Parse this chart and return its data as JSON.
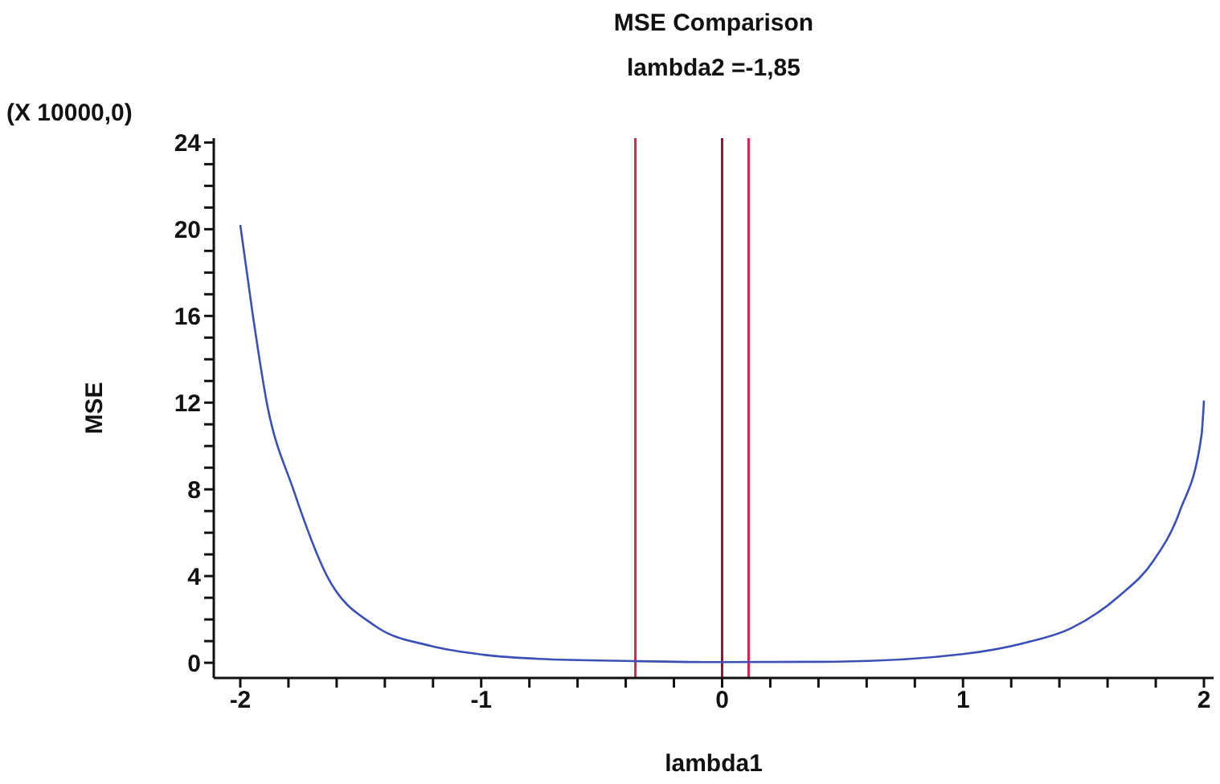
{
  "chart_data": {
    "type": "line",
    "title": "MSE Comparison",
    "subtitle": "lambda2 =-1,85",
    "xlabel": "lambda1",
    "ylabel": "MSE",
    "annotations": [
      "(X 10000,0)"
    ],
    "x": [
      -2,
      -1.95,
      -1.89,
      -1.78,
      -1.64,
      -1.44,
      -1.21,
      -0.99,
      -0.76,
      -0.37,
      0,
      0.47,
      1,
      1.25,
      1.45,
      1.65,
      1.79,
      1.9,
      1.99,
      2
    ],
    "series": [
      {
        "color": "#3b4fb8",
        "values": [
          20.2,
          16.2,
          12.0,
          8.0,
          4.0,
          1.7,
          0.78,
          0.37,
          0.18,
          0.08,
          0.03,
          0.05,
          0.4,
          0.9,
          1.6,
          3.1,
          4.7,
          7.0,
          10.5,
          12.1
        ]
      }
    ],
    "xlim": [
      -2.11,
      2.04
    ],
    "ylim": [
      -0.7,
      24.2
    ],
    "xticks": [
      -2,
      {
        "value": -1.8,
        "label": null
      },
      {
        "value": -1.6,
        "label": null
      },
      {
        "value": -1.4,
        "label": null
      },
      {
        "value": -1.2,
        "label": null
      },
      -1,
      {
        "value": -0.8,
        "label": null
      },
      {
        "value": -0.6,
        "label": null
      },
      {
        "value": -0.4,
        "label": null
      },
      {
        "value": -0.2,
        "label": null
      },
      0,
      {
        "value": 0.2,
        "label": null
      },
      {
        "value": 0.4,
        "label": null
      },
      {
        "value": 0.6,
        "label": null
      },
      {
        "value": 0.8,
        "label": null
      },
      1,
      {
        "value": 1.2,
        "label": null
      },
      {
        "value": 1.4,
        "label": null
      },
      {
        "value": 1.6,
        "label": null
      },
      {
        "value": 1.8,
        "label": null
      },
      2
    ],
    "yticks": [
      0,
      {
        "value": 1,
        "label": null
      },
      {
        "value": 2,
        "label": null
      },
      {
        "value": 3,
        "label": null
      },
      4,
      {
        "value": 5,
        "label": null
      },
      {
        "value": 6,
        "label": null
      },
      {
        "value": 7,
        "label": null
      },
      8,
      {
        "value": 9,
        "label": null
      },
      {
        "value": 10,
        "label": null
      },
      {
        "value": 11,
        "label": null
      },
      12,
      {
        "value": 13,
        "label": null
      },
      {
        "value": 14,
        "label": null
      },
      {
        "value": 15,
        "label": null
      },
      16,
      {
        "value": 17,
        "label": null
      },
      {
        "value": 18,
        "label": null
      },
      {
        "value": 19,
        "label": null
      },
      20,
      {
        "value": 21,
        "label": null
      },
      {
        "value": 22,
        "label": null
      },
      {
        "value": 23,
        "label": null
      },
      24
    ],
    "ref_lines": [
      {
        "axis": "x",
        "value": -0.36,
        "color": "#e0204a"
      },
      {
        "axis": "x",
        "value": 0,
        "color": "#8b1a3a"
      },
      {
        "axis": "x",
        "value": 0.11,
        "color": "#e0204a"
      }
    ],
    "grid": false,
    "marker": "none",
    "line_style": "solid"
  }
}
